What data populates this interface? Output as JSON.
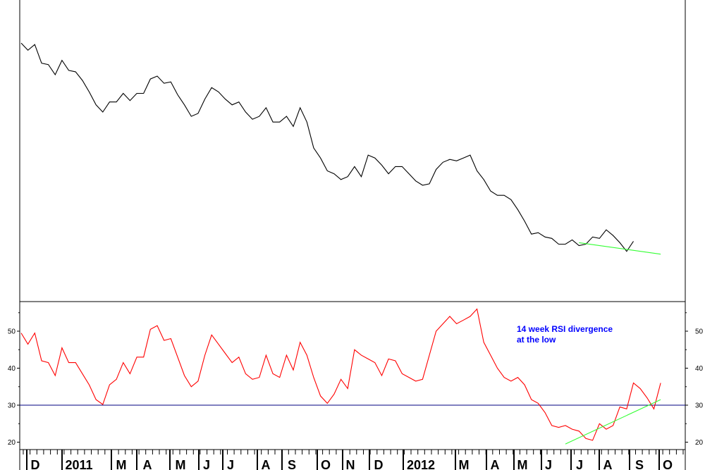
{
  "chart_data": [
    {
      "type": "line",
      "panel": "price",
      "x_labels": [
        "D",
        "2011",
        "M",
        "A",
        "M",
        "J",
        "J",
        "A",
        "S",
        "O",
        "N",
        "D",
        "2012",
        "M",
        "A",
        "M",
        "J",
        "J",
        "A",
        "S",
        "O"
      ],
      "series": [
        {
          "color": "#000000",
          "values": [
            9.0,
            8.75,
            8.95,
            8.3,
            8.25,
            7.9,
            8.4,
            8.05,
            8.0,
            7.7,
            7.3,
            6.85,
            6.6,
            6.95,
            6.95,
            7.25,
            7.0,
            7.25,
            7.25,
            7.75,
            7.85,
            7.6,
            7.65,
            7.2,
            6.85,
            6.45,
            6.55,
            7.05,
            7.45,
            7.3,
            7.05,
            6.85,
            6.95,
            6.6,
            6.35,
            6.45,
            6.75,
            6.25,
            6.25,
            6.45,
            6.1,
            6.75,
            6.25,
            5.35,
            5.0,
            4.55,
            4.45,
            4.25,
            4.35,
            4.7,
            4.35,
            5.1,
            5.0,
            4.75,
            4.45,
            4.7,
            4.7,
            4.45,
            4.2,
            4.05,
            4.1,
            4.6,
            4.85,
            4.95,
            4.9,
            5.0,
            5.1,
            4.55,
            4.25,
            3.85,
            3.7,
            3.7,
            3.55,
            3.2,
            2.8,
            2.35,
            2.4,
            2.25,
            2.2,
            2.0,
            2.0,
            2.15,
            1.95,
            2.0,
            2.25,
            2.2,
            2.5,
            2.3,
            2.05,
            1.75,
            2.1
          ]
        },
        {
          "color": "#33ff33",
          "x": [
            82,
            94
          ],
          "values": [
            2.05,
            1.65
          ]
        }
      ],
      "ylim": [
        0,
        10.5
      ]
    },
    {
      "type": "line",
      "panel": "rsi",
      "yticks_left": [
        "50",
        "40",
        "30",
        "20"
      ],
      "yticks_right": [
        "50",
        "40",
        "30",
        "20"
      ],
      "ylim": [
        18,
        58
      ],
      "reference_line": {
        "value": 30,
        "color": "#000080"
      },
      "series": [
        {
          "color": "#ff0000",
          "values": [
            49.5,
            46.5,
            49.5,
            42,
            41.5,
            38,
            45.5,
            41.5,
            41.5,
            38.5,
            35.5,
            31.5,
            30.2,
            35.5,
            37,
            41.5,
            38.5,
            43,
            43,
            50.5,
            51.5,
            47.5,
            48,
            43,
            38,
            35,
            36.5,
            43.5,
            49,
            46.5,
            44,
            41.5,
            43,
            38.5,
            37,
            37.5,
            43.5,
            38.5,
            37.5,
            43.5,
            39.5,
            47,
            43.5,
            37.5,
            32.5,
            30.5,
            33,
            37,
            34.5,
            45,
            43.5,
            42.5,
            41.5,
            38,
            42.5,
            42,
            38.5,
            37.5,
            36.5,
            37,
            43.5,
            50,
            52,
            54,
            52,
            53,
            54,
            56,
            47,
            43.5,
            40,
            37.5,
            36.5,
            37.5,
            35.5,
            31.5,
            30.5,
            28,
            24.5,
            24,
            24.5,
            23.5,
            23,
            21,
            20.5,
            25,
            23.5,
            24.5,
            29.5,
            29,
            36,
            34.5,
            32,
            29,
            36
          ]
        },
        {
          "color": "#33ff33",
          "x": [
            80,
            94
          ],
          "values": [
            19.5,
            31.5
          ]
        }
      ],
      "annotations": [
        "14 week RSI divergence",
        "at the low"
      ],
      "annotation_color": "#0000ff"
    }
  ]
}
